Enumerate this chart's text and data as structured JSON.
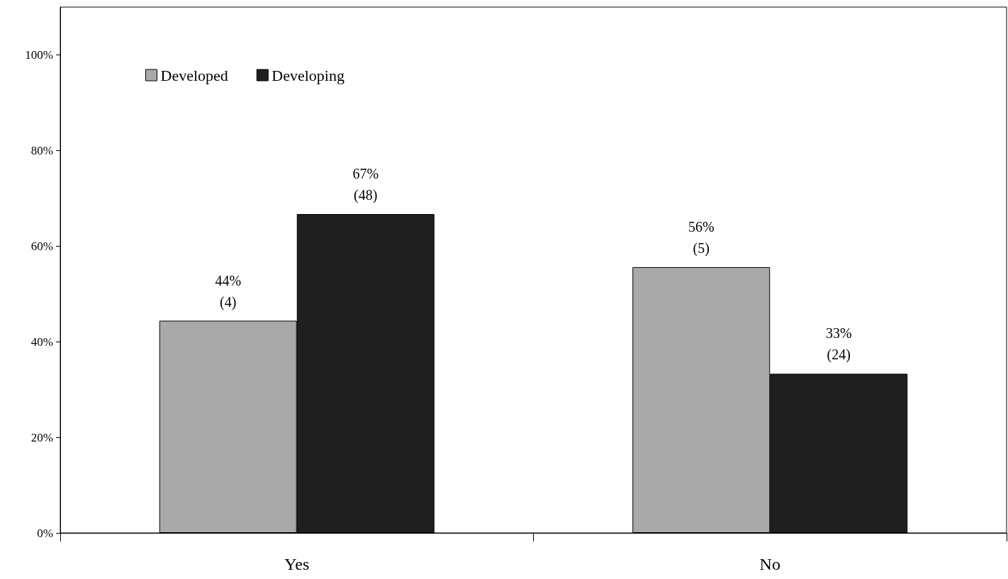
{
  "chart_data": {
    "type": "bar",
    "categories": [
      "Yes",
      "No"
    ],
    "series": [
      {
        "name": "Developed",
        "color": "#a9a9a9",
        "values": [
          44.4,
          55.6
        ],
        "value_labels": [
          "44%\n(4)",
          "56%\n(5)"
        ]
      },
      {
        "name": "Developing",
        "color": "#1f1f1f",
        "values": [
          66.7,
          33.3
        ],
        "value_labels": [
          "67%\n(48)",
          "33%\n(24)"
        ]
      }
    ],
    "ylim": [
      0,
      110
    ],
    "yticks": [
      {
        "value": 0,
        "label": "0%"
      },
      {
        "value": 20,
        "label": "20%"
      },
      {
        "value": 40,
        "label": "40%"
      },
      {
        "value": 60,
        "label": "60%"
      },
      {
        "value": 80,
        "label": "80%"
      },
      {
        "value": 100,
        "label": "100%"
      }
    ],
    "grid": false,
    "legend": "top left"
  }
}
